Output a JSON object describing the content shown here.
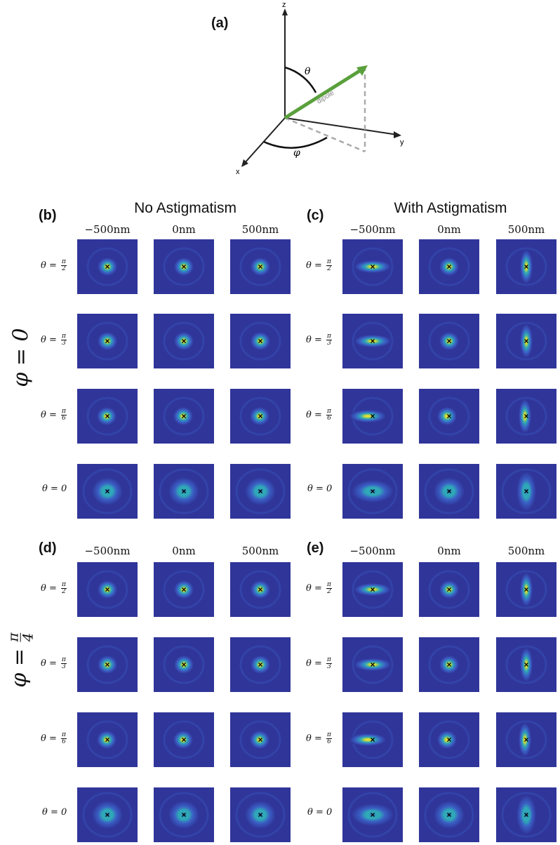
{
  "panel_a": {
    "label": "(a)",
    "axes": {
      "z": "z",
      "y": "y",
      "x": "x"
    },
    "theta_symbol": "θ",
    "phi_symbol": "φ",
    "dipole_label": "dipole",
    "colors": {
      "dipole": "#5aa03c",
      "axes": "#222222",
      "projection": "#aaaaaa"
    }
  },
  "groups": [
    {
      "id": "b",
      "label": "(b)",
      "title": "No Astigmatism",
      "astig": false,
      "phi": "0"
    },
    {
      "id": "c",
      "label": "(c)",
      "title": "With Astigmatism",
      "astig": true,
      "phi": "0"
    },
    {
      "id": "d",
      "label": "(d)",
      "title": "",
      "astig": false,
      "phi": "π/4"
    },
    {
      "id": "e",
      "label": "(e)",
      "title": "",
      "astig": true,
      "phi": "π/4"
    }
  ],
  "columns": [
    "−500nm",
    "0nm",
    "500nm"
  ],
  "rows": [
    {
      "prefix": "θ = ",
      "num": "π",
      "den": "2",
      "plain": ""
    },
    {
      "prefix": "θ = ",
      "num": "π",
      "den": "3",
      "plain": ""
    },
    {
      "prefix": "θ = ",
      "num": "π",
      "den": "6",
      "plain": ""
    },
    {
      "prefix": "θ = ",
      "num": "",
      "den": "",
      "plain": "0"
    }
  ],
  "phi_labels": {
    "top": "φ = 0",
    "bottom_prefix": "φ = ",
    "bottom_num": "π",
    "bottom_den": "4"
  },
  "marker": "×",
  "colormap": {
    "background": "#30359a",
    "ring": "#3a5fc4",
    "mid": "#2fa8b8",
    "core": "#c8d83a",
    "peak": "#f2e23a"
  }
}
